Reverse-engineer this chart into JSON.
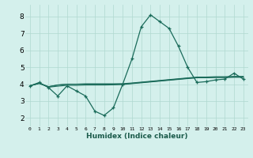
{
  "xlabel": "Humidex (Indice chaleur)",
  "background_color": "#d4f0ec",
  "grid_color": "#b0d8d0",
  "line_color": "#1a6b5a",
  "xlim": [
    -0.5,
    23.5
  ],
  "ylim": [
    1.5,
    8.7
  ],
  "xticks": [
    0,
    1,
    2,
    3,
    4,
    5,
    6,
    7,
    8,
    9,
    10,
    11,
    12,
    13,
    14,
    15,
    16,
    17,
    18,
    19,
    20,
    21,
    22,
    23
  ],
  "yticks": [
    2,
    3,
    4,
    5,
    6,
    7,
    8
  ],
  "series": [
    [
      3.9,
      4.1,
      3.8,
      3.3,
      3.9,
      3.6,
      3.3,
      2.4,
      2.15,
      2.6,
      4.0,
      5.5,
      7.4,
      8.1,
      7.7,
      7.3,
      6.25,
      5.0,
      4.1,
      4.15,
      4.25,
      4.3,
      4.65,
      4.3
    ],
    [
      3.9,
      4.05,
      3.85,
      3.95,
      4.0,
      4.0,
      4.0,
      4.0,
      4.0,
      4.0,
      4.0,
      4.05,
      4.1,
      4.15,
      4.2,
      4.25,
      4.3,
      4.35,
      4.38,
      4.38,
      4.4,
      4.4,
      4.42,
      4.42
    ],
    [
      3.9,
      4.05,
      3.85,
      3.95,
      4.0,
      4.0,
      4.02,
      4.02,
      4.02,
      4.02,
      4.03,
      4.07,
      4.12,
      4.17,
      4.22,
      4.27,
      4.32,
      4.37,
      4.42,
      4.42,
      4.44,
      4.44,
      4.46,
      4.46
    ],
    [
      3.9,
      4.05,
      3.82,
      3.88,
      3.93,
      3.93,
      3.95,
      3.95,
      3.95,
      3.96,
      3.98,
      4.03,
      4.08,
      4.13,
      4.18,
      4.23,
      4.28,
      4.33,
      4.38,
      4.38,
      4.4,
      4.4,
      4.41,
      4.41
    ]
  ]
}
